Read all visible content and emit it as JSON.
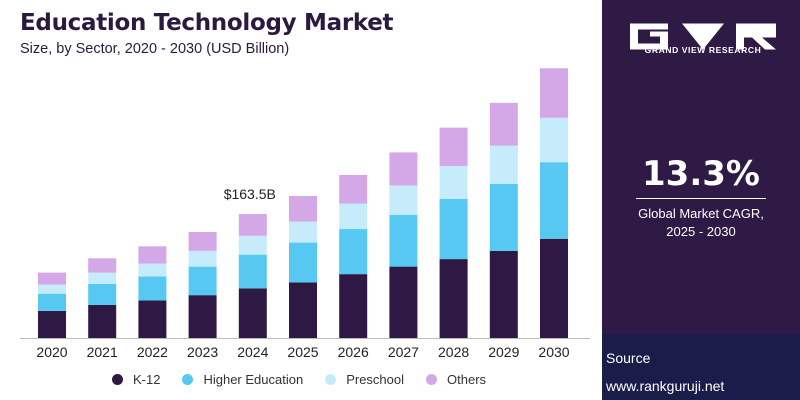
{
  "header": {
    "title": "Education Technology Market",
    "subtitle": "Size, by Sector, 2020 - 2030 (USD Billion)"
  },
  "annotation": {
    "label": "$163.5B",
    "year": "2024"
  },
  "sidebar": {
    "logo_text": "GRAND VIEW RESEARCH",
    "cagr_value": "13.3%",
    "cagr_label_line1": "Global Market CAGR,",
    "cagr_label_line2": "2025 - 2030"
  },
  "source": {
    "label": "Source",
    "url": "www.rankguruji.net"
  },
  "colors": {
    "k12": "#2e1844",
    "higher_education": "#56c8f2",
    "preschool": "#c6ecfb",
    "others": "#d4a8e6",
    "panel": "#2e1a45",
    "source_box": "#1a1d4a"
  },
  "chart_data": {
    "type": "bar",
    "stacked": true,
    "categories": [
      "2020",
      "2021",
      "2022",
      "2023",
      "2024",
      "2025",
      "2026",
      "2027",
      "2028",
      "2029",
      "2030"
    ],
    "series": [
      {
        "name": "K-12",
        "color": "#2e1844",
        "values": [
          36,
          44,
          50,
          57,
          66,
          74,
          85,
          95,
          105,
          116,
          132
        ]
      },
      {
        "name": "Higher Education",
        "color": "#56c8f2",
        "values": [
          23,
          28,
          32,
          38,
          45,
          53,
          60,
          69,
          80,
          89,
          102
        ]
      },
      {
        "name": "Preschool",
        "color": "#c6ecfb",
        "values": [
          12,
          15,
          17,
          21,
          25,
          28,
          34,
          39,
          44,
          51,
          59
        ]
      },
      {
        "name": "Others",
        "color": "#d4a8e6",
        "values": [
          16,
          19,
          23,
          25,
          29,
          34,
          38,
          44,
          51,
          57,
          66
        ]
      }
    ],
    "annotations": [
      {
        "category": "2024",
        "text": "$163.5B"
      }
    ],
    "ylim": [
      0,
      370
    ],
    "grid": false,
    "legend_position": "bottom"
  }
}
